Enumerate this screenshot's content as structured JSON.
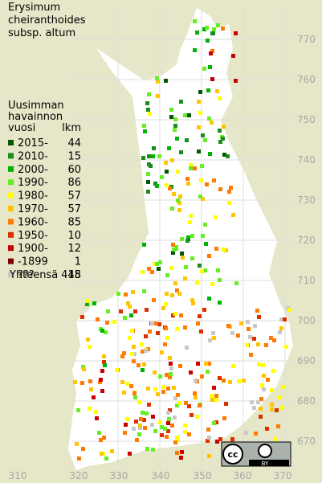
{
  "title": [
    "Erysimum",
    "cheiranthoides",
    "subsp. altum"
  ],
  "legend": {
    "header": [
      "Uusimman",
      "havainnon"
    ],
    "columns": [
      "vuosi",
      "lkm"
    ],
    "rows": [
      {
        "label": "2015-",
        "count": 44,
        "color": "#005800"
      },
      {
        "label": "2010-",
        "count": 15,
        "color": "#1c8c1c"
      },
      {
        "label": "2000-",
        "count": 60,
        "color": "#00b400"
      },
      {
        "label": "1990-",
        "count": 86,
        "color": "#66ee22"
      },
      {
        "label": "1980-",
        "count": 57,
        "color": "#ffff00"
      },
      {
        "label": "1970-",
        "count": 57,
        "color": "#ffc400"
      },
      {
        "label": "1960-",
        "count": 85,
        "color": "#ff7a00"
      },
      {
        "label": "1950-",
        "count": 10,
        "color": "#dd3000"
      },
      {
        "label": "1900-",
        "count": 12,
        "color": "#c80000"
      },
      {
        "label": "-1899",
        "count": 1,
        "color": "#800000"
      },
      {
        "label": "???",
        "count": 18,
        "color": "#c8c8c8"
      }
    ],
    "total": {
      "label": "Yhteensä",
      "count": 445
    }
  },
  "x_labels": [
    "310",
    "320",
    "330",
    "340",
    "350",
    "360",
    "370"
  ],
  "y_labels": [
    "770",
    "760",
    "750",
    "740",
    "730",
    "720",
    "710",
    "700",
    "690",
    "680",
    "670"
  ],
  "license": {
    "cc": "cc",
    "by": "BY"
  }
}
